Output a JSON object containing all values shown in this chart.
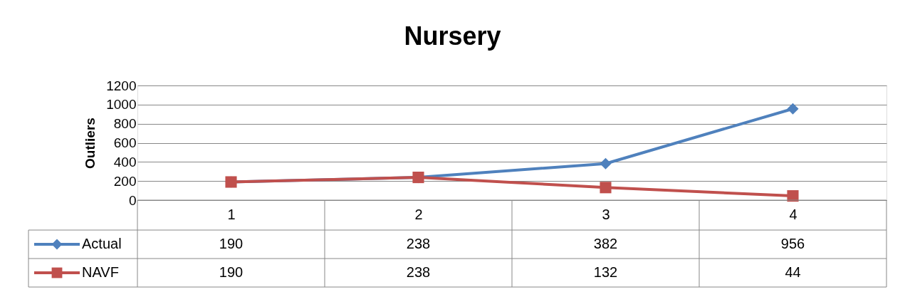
{
  "chart_data": {
    "type": "line",
    "title": "Nursery",
    "ylabel": "Outliers",
    "categories": [
      "1",
      "2",
      "3",
      "4"
    ],
    "series": [
      {
        "name": "Actual",
        "color": "#4f81bd",
        "marker": "diamond",
        "values": [
          190,
          238,
          382,
          956
        ]
      },
      {
        "name": "NAVF",
        "color": "#c0504d",
        "marker": "square",
        "values": [
          190,
          238,
          132,
          44
        ]
      }
    ],
    "ylim": [
      0,
      1200
    ],
    "yticks": [
      0,
      200,
      400,
      600,
      800,
      1000,
      1200
    ],
    "grid": "y",
    "legend": "bottom",
    "data_labels": true
  }
}
